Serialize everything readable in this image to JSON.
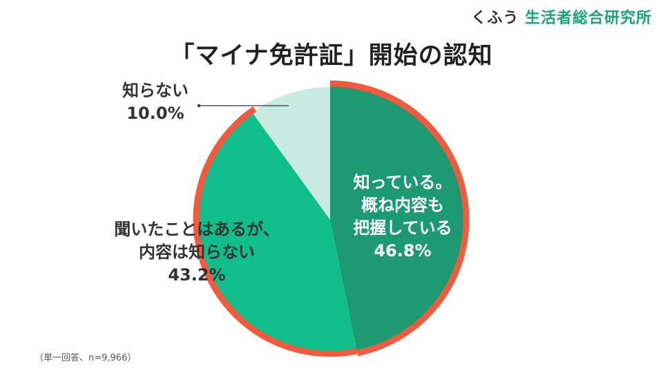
{
  "brand": {
    "prefix": "くふう",
    "name": "生活者総合研究所"
  },
  "chart_data": {
    "type": "pie",
    "title": "「マイナ免許証」開始の認知",
    "note": "（単一回答、n=9,966）",
    "slices": [
      {
        "lines": [
          "知っている。",
          "概ね内容も",
          "把握している"
        ],
        "value": 46.8,
        "value_label": "46.8%",
        "color": "#1d9a72",
        "text_color": "#ffffff",
        "highlight": true
      },
      {
        "lines": [
          "聞いたことはあるが、",
          "内容は知らない"
        ],
        "value": 43.2,
        "value_label": "43.2%",
        "color": "#0fbe8a",
        "text_color": "#333333",
        "highlight": false
      },
      {
        "lines": [
          "知らない"
        ],
        "value": 10.0,
        "value_label": "10.0%",
        "color": "#c8ebe2",
        "text_color": "#333333",
        "highlight": false
      }
    ],
    "highlight_color": "#f15a3c"
  }
}
